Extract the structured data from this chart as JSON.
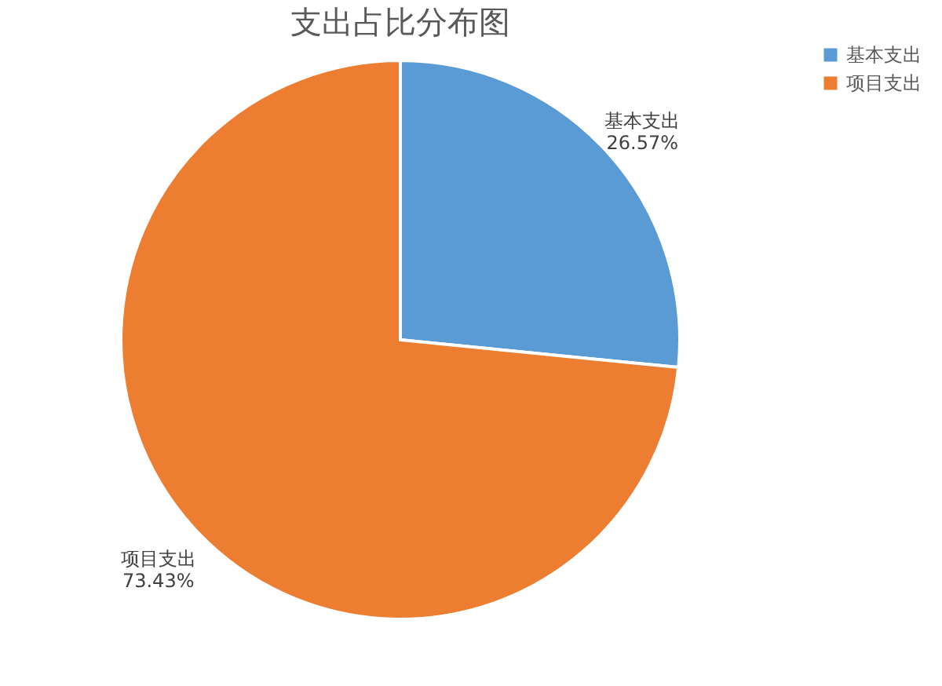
{
  "chart_data": {
    "type": "pie",
    "title": "支出占比分布图",
    "categories": [
      "基本支出",
      "项目支出"
    ],
    "values": [
      26.57,
      73.43
    ],
    "colors": [
      "#5b9bd5",
      "#ed7d31"
    ],
    "value_labels": [
      "26.57%",
      "73.43%"
    ],
    "legend": "right"
  }
}
